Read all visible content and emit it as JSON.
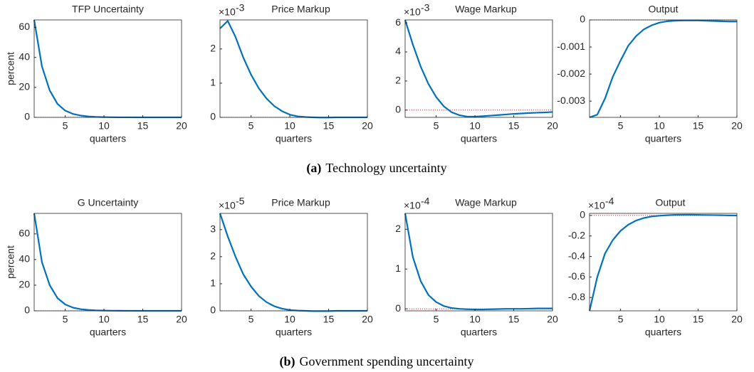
{
  "chart_data": [
    {
      "type": "line",
      "title": "TFP Uncertainty",
      "ylabel": "percent",
      "xlabel": "quarters",
      "x": [
        1,
        2,
        3,
        4,
        5,
        6,
        7,
        8,
        9,
        10,
        11,
        12,
        13,
        14,
        15,
        16,
        17,
        18,
        19,
        20
      ],
      "xlim": [
        1,
        20
      ],
      "xticks": [
        5,
        10,
        15,
        20
      ],
      "ylim": [
        0,
        65
      ],
      "yticks": [
        0,
        20,
        40,
        60
      ],
      "reference_line": {
        "value": 0,
        "color": "#d62728"
      },
      "series": [
        {
          "color": "#0072bd",
          "values": [
            65,
            34,
            18,
            9,
            4.5,
            2.3,
            1.2,
            0.6,
            0.3,
            0.15,
            0.08,
            0.04,
            0.02,
            0.01,
            0,
            0,
            0,
            0,
            0,
            0
          ]
        }
      ]
    },
    {
      "type": "line",
      "title": "Price Markup",
      "xlabel": "quarters",
      "y_multiplier": {
        "base": "×10",
        "exponent": "-3"
      },
      "x": [
        1,
        2,
        3,
        4,
        5,
        6,
        7,
        8,
        9,
        10,
        11,
        12,
        13,
        14,
        15,
        16,
        17,
        18,
        19,
        20
      ],
      "xlim": [
        1,
        20
      ],
      "xticks": [
        5,
        10,
        15,
        20
      ],
      "ylim": [
        0,
        2.85
      ],
      "yticks": [
        0,
        1,
        2
      ],
      "reference_line": {
        "value": 0,
        "color": "#d62728"
      },
      "series": [
        {
          "color": "#0072bd",
          "values": [
            2.6,
            2.82,
            2.35,
            1.75,
            1.25,
            0.85,
            0.55,
            0.33,
            0.18,
            0.08,
            0.03,
            0.01,
            0,
            -0.005,
            -0.005,
            0,
            0,
            0,
            0,
            0
          ]
        }
      ]
    },
    {
      "type": "line",
      "title": "Wage Markup",
      "xlabel": "quarters",
      "y_multiplier": {
        "base": "×10",
        "exponent": "-3"
      },
      "x": [
        1,
        2,
        3,
        4,
        5,
        6,
        7,
        8,
        9,
        10,
        11,
        12,
        13,
        14,
        15,
        16,
        17,
        18,
        19,
        20
      ],
      "xlim": [
        1,
        20
      ],
      "xticks": [
        5,
        10,
        15,
        20
      ],
      "ylim": [
        -0.5,
        6.2
      ],
      "yticks": [
        0,
        2,
        4,
        6
      ],
      "reference_line": {
        "value": 0,
        "color": "#d62728"
      },
      "series": [
        {
          "color": "#0072bd",
          "values": [
            6.2,
            4.5,
            3.0,
            1.8,
            0.9,
            0.25,
            -0.15,
            -0.35,
            -0.45,
            -0.45,
            -0.42,
            -0.38,
            -0.34,
            -0.3,
            -0.26,
            -0.23,
            -0.2,
            -0.18,
            -0.16,
            -0.13
          ]
        }
      ]
    },
    {
      "type": "line",
      "title": "Output",
      "xlabel": "quarters",
      "x": [
        1,
        2,
        3,
        4,
        5,
        6,
        7,
        8,
        9,
        10,
        11,
        12,
        13,
        14,
        15,
        16,
        17,
        18,
        19,
        20
      ],
      "xlim": [
        1,
        20
      ],
      "xticks": [
        5,
        10,
        15,
        20
      ],
      "ylim": [
        -0.0036,
        0
      ],
      "yticks": [
        -0.003,
        -0.002,
        -0.001,
        0
      ],
      "reference_line": {
        "value": 0,
        "color": "#d62728"
      },
      "series": [
        {
          "color": "#0072bd",
          "values": [
            -0.0036,
            -0.0035,
            -0.0029,
            -0.0021,
            -0.0015,
            -0.00095,
            -0.0006,
            -0.00035,
            -0.0002,
            -0.0001,
            -5e-05,
            -3e-05,
            -2e-05,
            -2e-05,
            -2e-05,
            -3e-05,
            -4e-05,
            -5e-05,
            -6e-05,
            -6e-05
          ]
        }
      ]
    },
    {
      "type": "line",
      "title": "G Uncertainty",
      "ylabel": "percent",
      "xlabel": "quarters",
      "x": [
        1,
        2,
        3,
        4,
        5,
        6,
        7,
        8,
        9,
        10,
        11,
        12,
        13,
        14,
        15,
        16,
        17,
        18,
        19,
        20
      ],
      "xlim": [
        1,
        20
      ],
      "xticks": [
        5,
        10,
        15,
        20
      ],
      "ylim": [
        0,
        76
      ],
      "yticks": [
        0,
        20,
        40,
        60
      ],
      "reference_line": {
        "value": 0,
        "color": "#d62728"
      },
      "series": [
        {
          "color": "#0072bd",
          "values": [
            76,
            38,
            20,
            10,
            5,
            2.5,
            1.3,
            0.7,
            0.35,
            0.2,
            0.1,
            0.05,
            0.02,
            0.01,
            0,
            0,
            0,
            0,
            0,
            0
          ]
        }
      ]
    },
    {
      "type": "line",
      "title": "Price Markup",
      "xlabel": "quarters",
      "y_multiplier": {
        "base": "×10",
        "exponent": "-5"
      },
      "x": [
        1,
        2,
        3,
        4,
        5,
        6,
        7,
        8,
        9,
        10,
        11,
        12,
        13,
        14,
        15,
        16,
        17,
        18,
        19,
        20
      ],
      "xlim": [
        1,
        20
      ],
      "xticks": [
        5,
        10,
        15,
        20
      ],
      "ylim": [
        0,
        3.6
      ],
      "yticks": [
        0,
        1,
        2,
        3
      ],
      "reference_line": {
        "value": 0,
        "color": "#d62728"
      },
      "series": [
        {
          "color": "#0072bd",
          "values": [
            3.6,
            2.75,
            2.0,
            1.35,
            0.9,
            0.55,
            0.32,
            0.17,
            0.08,
            0.03,
            0.01,
            0,
            -0.01,
            -0.01,
            -0.01,
            0,
            0,
            0,
            0,
            0
          ]
        }
      ]
    },
    {
      "type": "line",
      "title": "Wage Markup",
      "xlabel": "quarters",
      "y_multiplier": {
        "base": "×10",
        "exponent": "-4"
      },
      "x": [
        1,
        2,
        3,
        4,
        5,
        6,
        7,
        8,
        9,
        10,
        11,
        12,
        13,
        14,
        15,
        16,
        17,
        18,
        19,
        20
      ],
      "xlim": [
        1,
        20
      ],
      "xticks": [
        5,
        10,
        15,
        20
      ],
      "ylim": [
        -0.05,
        2.4
      ],
      "yticks": [
        0,
        1,
        2
      ],
      "reference_line": {
        "value": 0,
        "color": "#d62728"
      },
      "series": [
        {
          "color": "#0072bd",
          "values": [
            2.4,
            1.3,
            0.7,
            0.35,
            0.17,
            0.07,
            0.02,
            0,
            -0.01,
            -0.015,
            -0.015,
            -0.01,
            -0.005,
            0,
            0,
            0,
            0.005,
            0.01,
            0.01,
            0.01
          ]
        }
      ]
    },
    {
      "type": "line",
      "title": "Output",
      "xlabel": "quarters",
      "y_multiplier": {
        "base": "×10",
        "exponent": "-4"
      },
      "x": [
        1,
        2,
        3,
        4,
        5,
        6,
        7,
        8,
        9,
        10,
        11,
        12,
        13,
        14,
        15,
        16,
        17,
        18,
        19,
        20
      ],
      "xlim": [
        1,
        20
      ],
      "xticks": [
        5,
        10,
        15,
        20
      ],
      "ylim": [
        -0.93,
        0.02
      ],
      "yticks": [
        -0.8,
        -0.6,
        -0.4,
        -0.2,
        0
      ],
      "reference_line": {
        "value": 0,
        "color": "#d62728"
      },
      "series": [
        {
          "color": "#0072bd",
          "values": [
            -0.93,
            -0.6,
            -0.37,
            -0.24,
            -0.15,
            -0.09,
            -0.05,
            -0.025,
            -0.01,
            -0.003,
            0.002,
            0.005,
            0.006,
            0.006,
            0.005,
            0.004,
            0.003,
            0.002,
            0,
            -0.001
          ]
        }
      ]
    }
  ],
  "captions": [
    {
      "label": "(a)",
      "text": "Technology uncertainty"
    },
    {
      "label": "(b)",
      "text": "Government spending uncertainty"
    }
  ]
}
